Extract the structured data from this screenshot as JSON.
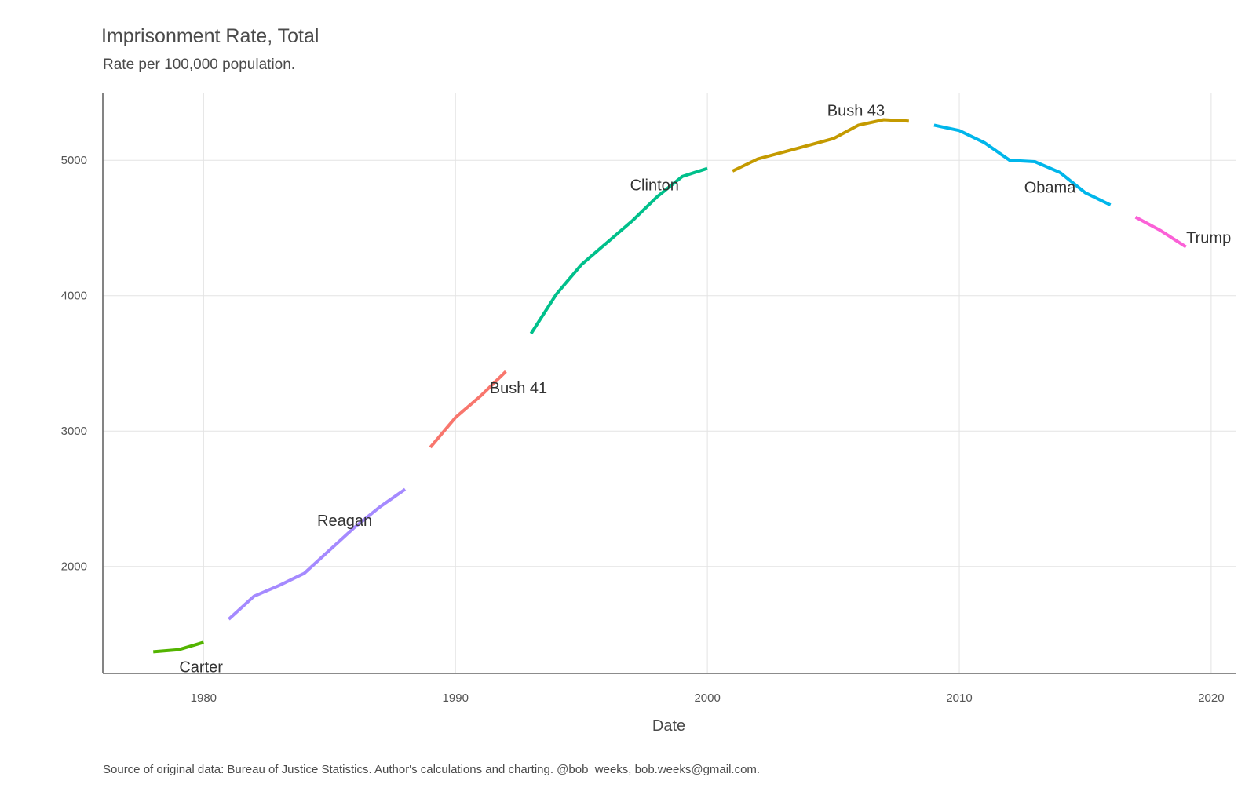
{
  "chart_data": {
    "type": "line",
    "title": "Imprisonment Rate, Total",
    "subtitle": "Rate per 100,000 population.",
    "xlabel": "Date",
    "ylabel": "",
    "caption": "Source of original data: Bureau of Justice Statistics. Author's calculations and charting. @bob_weeks, bob.weeks@gmail.com.",
    "xlim": [
      1976,
      2021
    ],
    "ylim": [
      1210,
      5500
    ],
    "x_ticks": [
      1980,
      1990,
      2000,
      2010,
      2020
    ],
    "y_ticks": [
      2000,
      3000,
      4000,
      5000
    ],
    "grid": true,
    "legend": "none (direct labels)",
    "series": [
      {
        "name": "Carter",
        "color": "#53b400",
        "x": [
          1978,
          1979,
          1980
        ],
        "values": [
          1370,
          1385,
          1440
        ],
        "label_at": [
          1979.9,
          1260
        ]
      },
      {
        "name": "Reagan",
        "color": "#a58aff",
        "x": [
          1981,
          1982,
          1983,
          1984,
          1985,
          1986,
          1987,
          1988
        ],
        "values": [
          1610,
          1780,
          1860,
          1950,
          2120,
          2290,
          2440,
          2570
        ],
        "label_at": [
          1985.6,
          2340
        ]
      },
      {
        "name": "Bush 41",
        "color": "#f8766d",
        "x": [
          1989,
          1990,
          1991,
          1992
        ],
        "values": [
          2880,
          3100,
          3260,
          3440
        ],
        "label_at": [
          1992.5,
          3320
        ]
      },
      {
        "name": "Clinton",
        "color": "#00c08b",
        "x": [
          1993,
          1994,
          1995,
          1996,
          1997,
          1998,
          1999,
          2000
        ],
        "values": [
          3720,
          4010,
          4230,
          4390,
          4550,
          4730,
          4880,
          4940
        ],
        "label_at": [
          1997.9,
          4820
        ]
      },
      {
        "name": "Bush 43",
        "color": "#c49a00",
        "x": [
          2001,
          2002,
          2003,
          2004,
          2005,
          2006,
          2007,
          2008
        ],
        "values": [
          4920,
          5010,
          5060,
          5110,
          5160,
          5260,
          5300,
          5290
        ],
        "label_at": [
          2005.9,
          5370
        ]
      },
      {
        "name": "Obama",
        "color": "#00b6eb",
        "x": [
          2009,
          2010,
          2011,
          2012,
          2013,
          2014,
          2015,
          2016
        ],
        "values": [
          5260,
          5220,
          5130,
          5000,
          4990,
          4910,
          4760,
          4670
        ],
        "label_at": [
          2013.6,
          4800
        ]
      },
      {
        "name": "Trump",
        "color": "#fb61d7",
        "x": [
          2017,
          2018,
          2019
        ],
        "values": [
          4580,
          4480,
          4360
        ],
        "label_at": [
          2019.9,
          4430
        ]
      }
    ]
  }
}
